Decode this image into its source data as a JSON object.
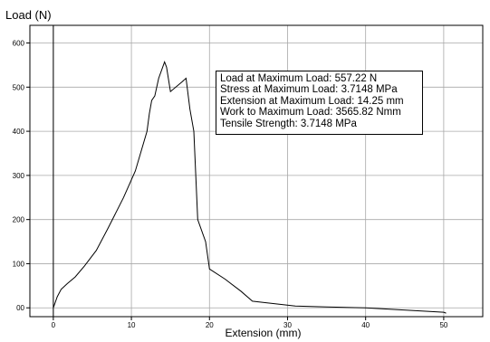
{
  "chart_data": {
    "type": "line",
    "title": "",
    "xlabel": "Extension (mm)",
    "ylabel": "Load (N)",
    "xlim": [
      -3,
      55
    ],
    "ylim": [
      -20,
      640
    ],
    "x_ticks": [
      0,
      10,
      20,
      30,
      40,
      50
    ],
    "x_tick_labels": [
      "0",
      "10",
      "20",
      "30",
      "40",
      "50"
    ],
    "y_ticks": [
      0,
      100,
      200,
      300,
      400,
      500,
      600
    ],
    "y_tick_labels": [
      "00",
      "100",
      "200",
      "300",
      "400",
      "500",
      "600"
    ],
    "grid": true,
    "series": [
      {
        "points": [
          [
            0,
            0
          ],
          [
            0.5,
            25
          ],
          [
            1,
            42
          ],
          [
            1.8,
            55
          ],
          [
            2.8,
            70
          ],
          [
            4,
            95
          ],
          [
            5.5,
            130
          ],
          [
            7,
            180
          ],
          [
            9,
            250
          ],
          [
            10.5,
            310
          ],
          [
            12,
            400
          ],
          [
            12.3,
            440
          ],
          [
            12.6,
            470
          ],
          [
            13,
            480
          ],
          [
            13.5,
            520
          ],
          [
            14.25,
            557
          ],
          [
            14.5,
            545
          ],
          [
            15,
            490
          ],
          [
            16.5,
            512
          ],
          [
            17,
            520
          ],
          [
            17.5,
            450
          ],
          [
            18,
            400
          ],
          [
            18.5,
            200
          ],
          [
            19.5,
            150
          ],
          [
            20,
            88
          ],
          [
            22,
            65
          ],
          [
            24,
            38
          ],
          [
            25.5,
            15
          ],
          [
            27,
            12
          ],
          [
            31,
            4
          ],
          [
            35,
            2
          ],
          [
            40,
            0
          ],
          [
            50,
            -10
          ],
          [
            50.3,
            -12
          ]
        ]
      }
    ],
    "annotations": [
      "Load at Maximum Load: 557.22 N",
      "Stress at Maximum Load: 3.7148 MPa",
      "Extension at Maximum Load: 14.25 mm",
      "Work to Maximum Load: 3565.82 Nmm",
      "Tensile Strength: 3.7148 MPa"
    ]
  }
}
